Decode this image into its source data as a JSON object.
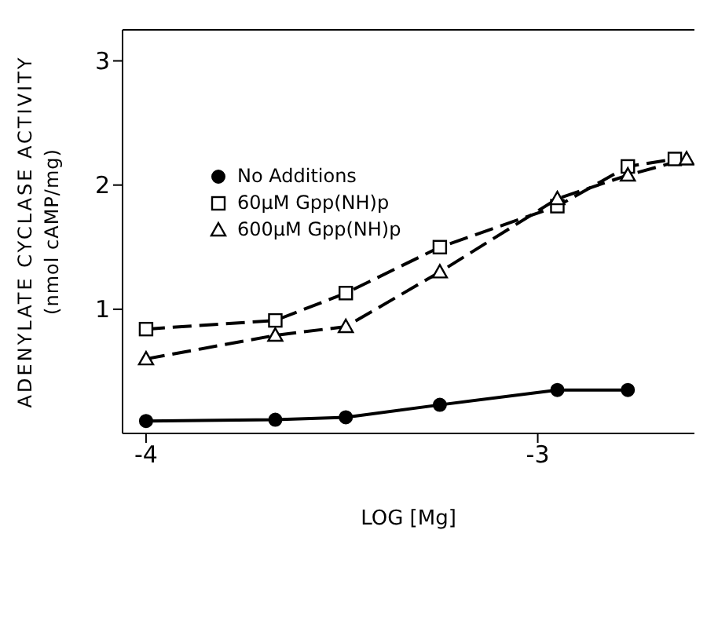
{
  "chart_data": {
    "type": "line",
    "xlabel": "LOG [Mg]",
    "ylabel": "ADENYLATE CYCLASE ACTIVITY\n(nmol cAMP/mg)",
    "series": [
      {
        "name": "No Additions",
        "x": [
          -4,
          -3.67,
          -3.49,
          -3.25,
          -2.95,
          -2.77
        ],
        "color": "#000000",
        "marker": "circle",
        "line_style": "solid",
        "values": [
          0.1,
          0.11,
          0.13,
          0.23,
          0.35,
          0.35
        ]
      },
      {
        "name": "60μM Gpp(NH)p",
        "x": [
          -4,
          -3.67,
          -3.49,
          -3.25,
          -2.95,
          -2.77,
          -2.65
        ],
        "color": "#000000",
        "marker": "square",
        "line_style": "dashed",
        "values": [
          0.84,
          0.91,
          1.13,
          1.5,
          1.83,
          2.15,
          2.21
        ]
      },
      {
        "name": "600μM Gpp(NH)p",
        "x": [
          -4,
          -3.67,
          -3.49,
          -3.25,
          -2.95,
          -2.77,
          -2.62
        ],
        "color": "#000000",
        "marker": "triangle",
        "line_style": "dashed",
        "values": [
          0.6,
          0.79,
          0.86,
          1.3,
          1.89,
          2.08,
          2.21
        ]
      }
    ],
    "xlim": [
      -4.06,
      -2.6
    ],
    "ylim": [
      0,
      3.25
    ],
    "xticks": [
      -4,
      -3
    ],
    "yticks": [
      1,
      2,
      3
    ],
    "grid": false,
    "legend": "top left"
  }
}
